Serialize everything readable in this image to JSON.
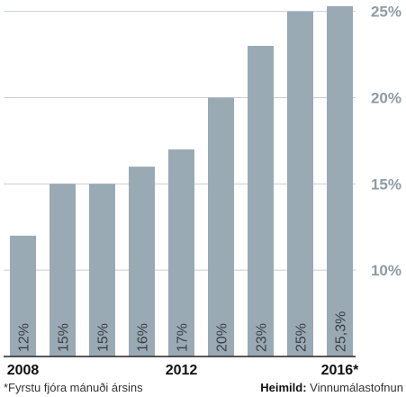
{
  "chart_data": {
    "type": "bar",
    "categories": [
      "2008",
      "",
      "",
      "",
      "2012",
      "",
      "",
      "",
      "2016*"
    ],
    "values": [
      12,
      15,
      15,
      16,
      17,
      20,
      23,
      25,
      25.3
    ],
    "bar_labels": [
      "12%",
      "15%",
      "15%",
      "16%",
      "17%",
      "20%",
      "23%",
      "25%",
      "25,3%"
    ],
    "y_ticks": [
      {
        "value": 10,
        "label": "10%"
      },
      {
        "value": 15,
        "label": "15%"
      },
      {
        "value": 20,
        "label": "20%"
      },
      {
        "value": 25,
        "label": "25%"
      }
    ],
    "ylim": [
      5,
      25.5
    ],
    "bar_color": "#99aab5",
    "grid": true,
    "title": "",
    "xlabel": "",
    "ylabel": ""
  },
  "footnote": "*Fyrstu fjóra mánuði ársins",
  "source": {
    "label": "Heimild:",
    "value": "Vinnumálastofnun"
  }
}
